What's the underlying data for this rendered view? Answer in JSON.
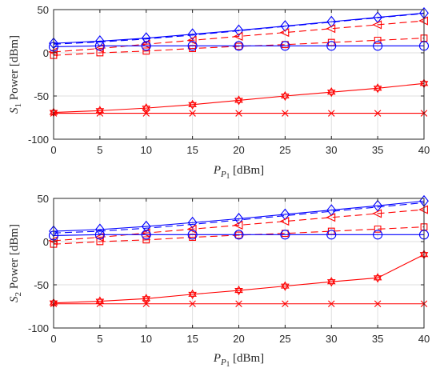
{
  "chart_data": [
    {
      "type": "line",
      "ylabel": {
        "symbol": "S",
        "sub": "1",
        "rest": "Power [dBm]"
      },
      "xlabel": {
        "symbol": "P",
        "sub": "P",
        "subsub": "1",
        "rest": "[dBm]"
      },
      "xlim": [
        0,
        40
      ],
      "ylim": [
        -100,
        50
      ],
      "xticks": [
        0,
        5,
        10,
        15,
        20,
        25,
        30,
        35,
        40
      ],
      "yticks": [
        -100,
        -50,
        0,
        50
      ],
      "grid": true,
      "x": [
        0,
        5,
        10,
        15,
        20,
        25,
        30,
        35,
        40
      ],
      "series": [
        {
          "color": "#0000ff",
          "dash": "solid",
          "marker": "diamond",
          "values": [
            11,
            13.5,
            17,
            21.5,
            26,
            31,
            36,
            41,
            46
          ]
        },
        {
          "color": "#0000ff",
          "dash": "dashed",
          "marker": "none",
          "values": [
            10,
            12.5,
            16,
            20.5,
            25.5,
            30.5,
            35.5,
            40.5,
            45.5
          ]
        },
        {
          "color": "#ff0000",
          "dash": "dashed",
          "marker": "triangle-left",
          "values": [
            1,
            5,
            10,
            14.5,
            19,
            23.5,
            28,
            32.5,
            37
          ]
        },
        {
          "color": "#ff0000",
          "dash": "dashed",
          "marker": "square",
          "values": [
            -3,
            0,
            2,
            5,
            7.5,
            9.5,
            12,
            14.5,
            17
          ]
        },
        {
          "color": "#0000ff",
          "dash": "solid",
          "marker": "circle",
          "values": [
            7,
            8,
            8,
            8,
            8,
            8,
            8,
            8,
            8
          ]
        },
        {
          "color": "#ff0000",
          "dash": "solid",
          "marker": "hexagram",
          "values": [
            -69,
            -67,
            -64,
            -60,
            -55,
            -50,
            -45.5,
            -41,
            -35.5
          ]
        },
        {
          "color": "#ff0000",
          "dash": "solid",
          "marker": "x",
          "values": [
            -70,
            -70,
            -70,
            -70,
            -70,
            -70,
            -70,
            -70,
            -70
          ]
        }
      ]
    },
    {
      "type": "line",
      "ylabel": {
        "symbol": "S",
        "sub": "2",
        "rest": "Power [dBm]"
      },
      "xlabel": {
        "symbol": "P",
        "sub": "P",
        "subsub": "1",
        "rest": "[dBm]"
      },
      "xlim": [
        0,
        40
      ],
      "ylim": [
        -100,
        50
      ],
      "xticks": [
        0,
        5,
        10,
        15,
        20,
        25,
        30,
        35,
        40
      ],
      "yticks": [
        -100,
        -50,
        0,
        50
      ],
      "grid": true,
      "x": [
        0,
        5,
        10,
        15,
        20,
        25,
        30,
        35,
        40
      ],
      "series": [
        {
          "color": "#0000ff",
          "dash": "solid",
          "marker": "diamond",
          "values": [
            12,
            14,
            17.5,
            22,
            26.5,
            31.5,
            36.5,
            41.5,
            47
          ]
        },
        {
          "color": "#0000ff",
          "dash": "dashed",
          "marker": "none",
          "values": [
            10,
            12,
            15.5,
            20,
            25,
            30,
            35,
            40,
            45
          ]
        },
        {
          "color": "#ff0000",
          "dash": "dashed",
          "marker": "triangle-left",
          "values": [
            1,
            5,
            10,
            14.5,
            19,
            23.5,
            28,
            32.5,
            37
          ]
        },
        {
          "color": "#ff0000",
          "dash": "dashed",
          "marker": "square",
          "values": [
            -3,
            0,
            2,
            5,
            7.5,
            9.5,
            12,
            14.5,
            17
          ]
        },
        {
          "color": "#0000ff",
          "dash": "solid",
          "marker": "circle",
          "values": [
            7,
            8,
            8,
            8,
            8,
            8,
            8,
            8,
            8
          ]
        },
        {
          "color": "#ff0000",
          "dash": "solid",
          "marker": "hexagram",
          "values": [
            -71,
            -69,
            -66,
            -61,
            -56.5,
            -51.5,
            -46.5,
            -42,
            -15
          ]
        },
        {
          "color": "#ff0000",
          "dash": "solid",
          "marker": "x",
          "values": [
            -72,
            -72,
            -72,
            -72,
            -72,
            -72,
            -72,
            -72,
            -72
          ]
        }
      ]
    }
  ]
}
